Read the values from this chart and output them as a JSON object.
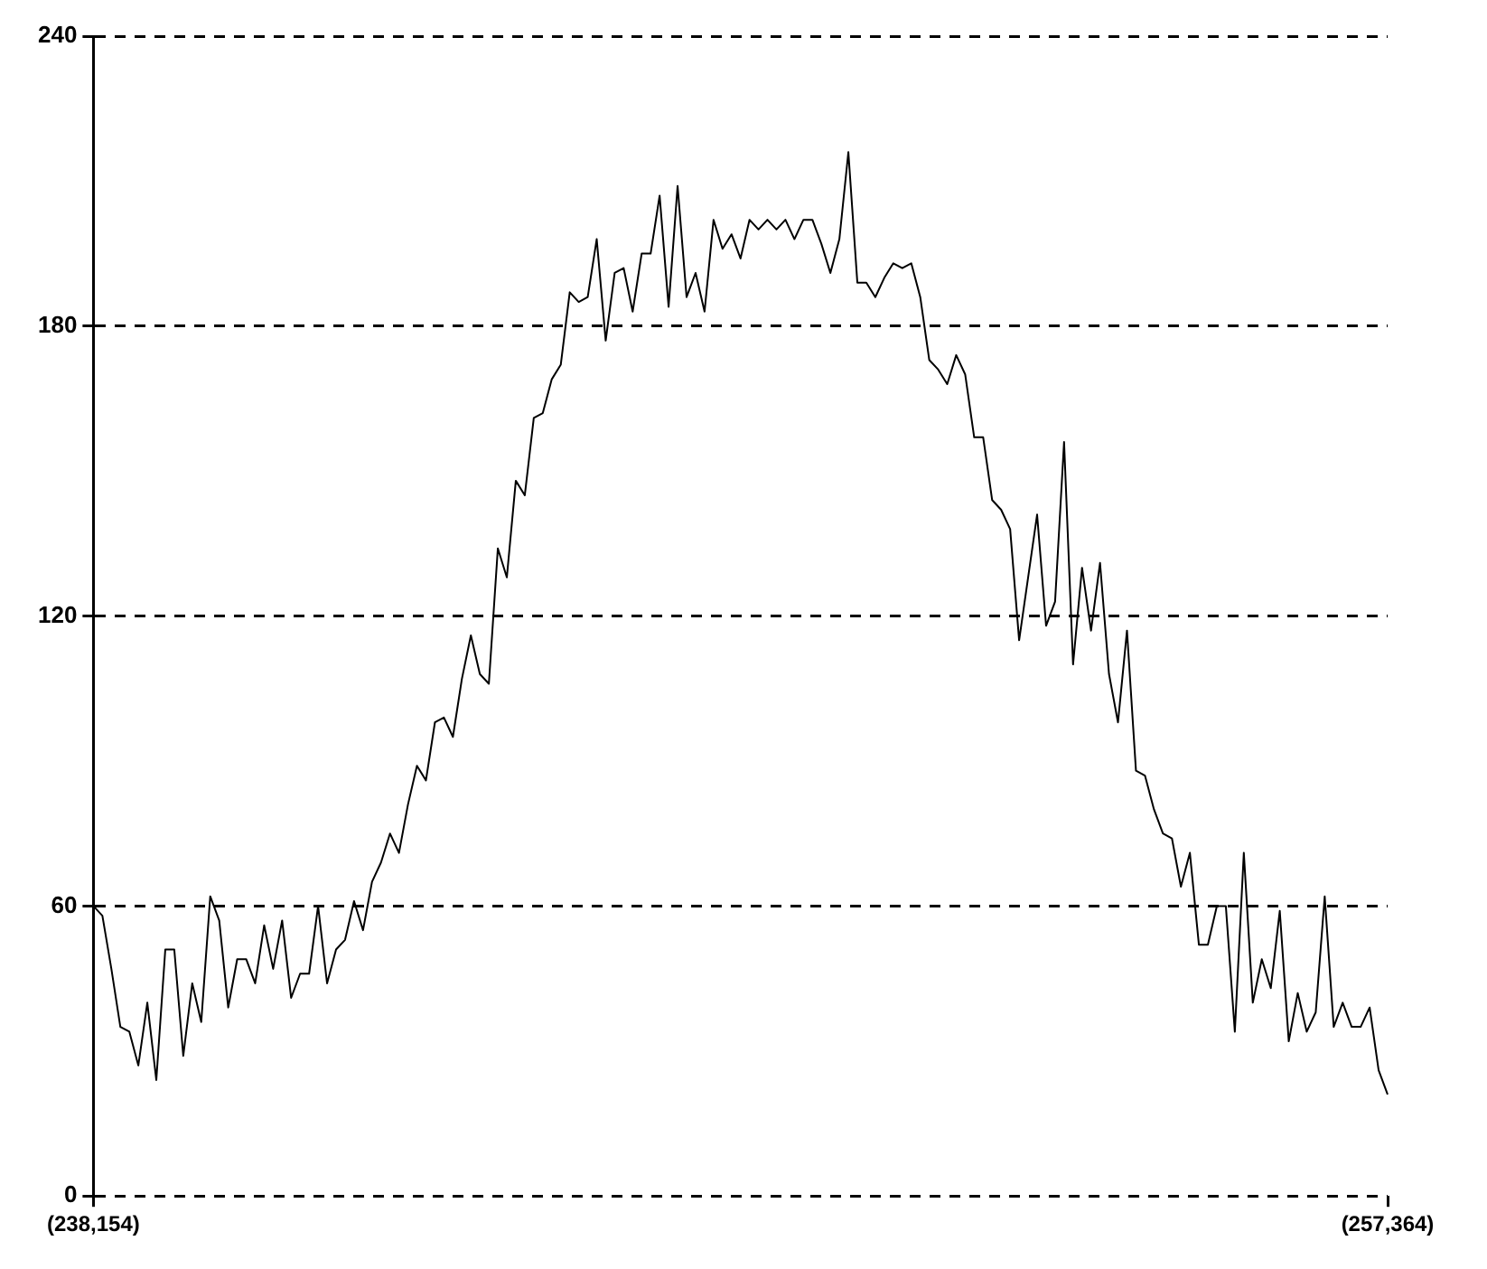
{
  "chart_data": {
    "type": "line",
    "color": "#000000",
    "grid": "y",
    "categories": [
      "(238,154)",
      null,
      null,
      null,
      null,
      null,
      null,
      null,
      null,
      null,
      null,
      null,
      null,
      null,
      null,
      null,
      null,
      null,
      null,
      null,
      null,
      null,
      null,
      null,
      null,
      null,
      null,
      null,
      null,
      null,
      null,
      null,
      null,
      null,
      null,
      null,
      null,
      null,
      null,
      null,
      null,
      null,
      null,
      null,
      null,
      null,
      null,
      null,
      null,
      null,
      null,
      null,
      null,
      null,
      null,
      null,
      null,
      null,
      null,
      null,
      null,
      null,
      null,
      null,
      null,
      null,
      null,
      null,
      null,
      null,
      null,
      null,
      null,
      null,
      null,
      null,
      null,
      null,
      null,
      null,
      null,
      null,
      null,
      null,
      null,
      null,
      null,
      null,
      null,
      null,
      null,
      null,
      null,
      null,
      null,
      null,
      null,
      null,
      null,
      null,
      null,
      null,
      null,
      null,
      null,
      null,
      null,
      null,
      null,
      null,
      null,
      null,
      null,
      null,
      null,
      null,
      null,
      null,
      null,
      null,
      null,
      null,
      null,
      null,
      null,
      null,
      null,
      null,
      null,
      null,
      null,
      null,
      null,
      null,
      null,
      null,
      null,
      null,
      null,
      null,
      null,
      null,
      null,
      null,
      "(257,364)"
    ],
    "values": [
      60,
      58,
      47,
      35,
      34,
      27,
      40,
      24,
      51,
      51,
      29,
      44,
      36,
      62,
      57,
      39,
      49,
      49,
      44,
      56,
      47,
      57,
      41,
      46,
      46,
      60,
      44,
      51,
      53,
      61,
      55,
      65,
      69,
      75,
      71,
      81,
      89,
      86,
      98,
      99,
      95,
      107,
      116,
      108,
      106,
      134,
      128,
      148,
      145,
      161,
      162,
      169,
      172,
      187,
      185,
      186,
      198,
      177,
      191,
      192,
      183,
      195,
      195,
      207,
      184,
      209,
      186,
      191,
      183,
      202,
      196,
      199,
      194,
      202,
      200,
      202,
      200,
      202,
      198,
      202,
      202,
      197,
      191,
      198,
      216,
      189,
      189,
      186,
      190,
      193,
      192,
      193,
      186,
      173,
      171,
      168,
      174,
      170,
      157,
      157,
      144,
      142,
      138,
      115,
      128,
      141,
      118,
      123,
      156,
      110,
      130,
      117,
      131,
      108,
      98,
      117,
      88,
      87,
      80,
      75,
      74,
      64,
      71,
      52,
      52,
      60,
      60,
      34,
      71,
      40,
      49,
      43,
      59,
      32,
      42,
      34,
      38,
      62,
      35,
      40,
      35,
      35,
      39,
      26,
      21
    ],
    "ylim": [
      0,
      240
    ],
    "yticks": [
      0,
      60,
      120,
      180,
      240
    ]
  }
}
